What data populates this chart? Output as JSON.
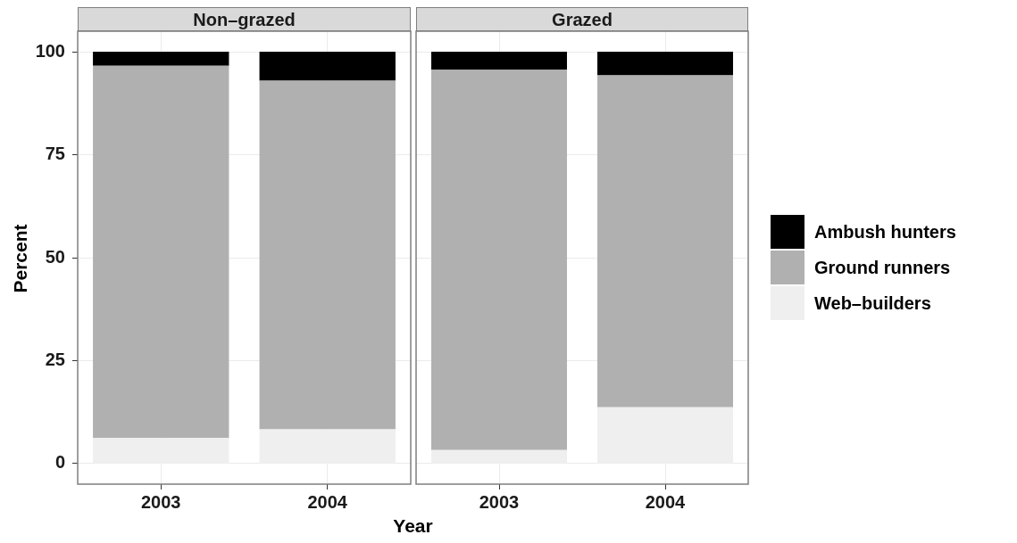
{
  "chart_data": [
    {
      "type": "bar",
      "title": "Non–grazed",
      "xlabel": "Year",
      "ylabel": "Percent",
      "categories": [
        "2003",
        "2004"
      ],
      "stacked": true,
      "ylim": [
        -5,
        105
      ],
      "yticks": [
        0,
        25,
        50,
        75,
        100
      ],
      "grid": true,
      "legend": "right",
      "series": [
        {
          "name": "Web–builders",
          "color": "#efefef",
          "values": [
            6.2,
            8.3
          ]
        },
        {
          "name": "Ground runners",
          "color": "#b0b0b0",
          "values": [
            90.4,
            84.7
          ]
        },
        {
          "name": "Ambush hunters",
          "color": "#000000",
          "values": [
            3.4,
            7.0
          ]
        }
      ]
    },
    {
      "type": "bar",
      "title": "Grazed",
      "categories": [
        "2003",
        "2004"
      ],
      "stacked": true,
      "ylim": [
        -5,
        105
      ],
      "yticks": [
        0,
        25,
        50,
        75,
        100
      ],
      "grid": true,
      "tick_labels": "x",
      "series": [
        {
          "color": "#efefef",
          "values": [
            3.3,
            13.7
          ]
        },
        {
          "color": "#b0b0b0",
          "values": [
            92.4,
            80.6
          ]
        },
        {
          "color": "#000000",
          "values": [
            4.3,
            5.7
          ]
        }
      ]
    }
  ]
}
